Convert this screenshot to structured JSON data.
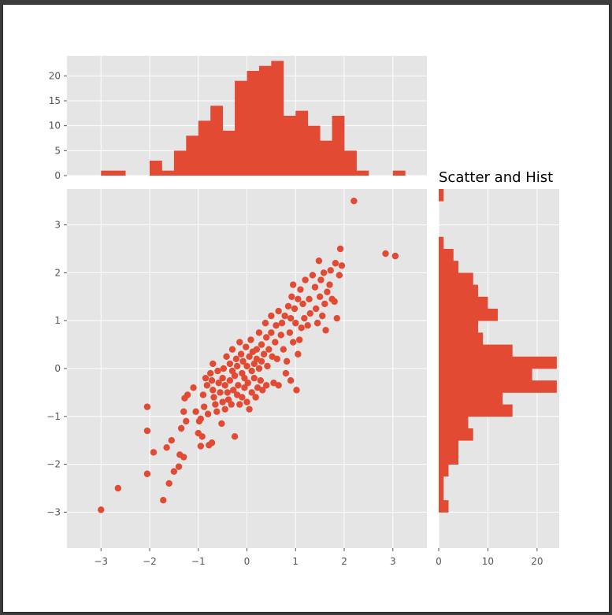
{
  "colors": {
    "marker": "#E24A33",
    "axes_bg": "#E5E5E5",
    "grid": "#FFFFFF",
    "tick_text": "#555555"
  },
  "chart_data": [
    {
      "type": "scatter",
      "name": "main-scatter",
      "xlim": [
        -3.7,
        3.7
      ],
      "ylim": [
        -3.75,
        3.75
      ],
      "xticks": [
        -3,
        -2,
        -1,
        0,
        1,
        2,
        3
      ],
      "yticks": [
        -3,
        -2,
        -1,
        0,
        1,
        2,
        3
      ],
      "grid": true,
      "points": [
        [
          -3.0,
          -2.95
        ],
        [
          -2.65,
          -2.5
        ],
        [
          -2.05,
          -0.8
        ],
        [
          -2.05,
          -1.3
        ],
        [
          -2.05,
          -2.2
        ],
        [
          -1.92,
          -1.75
        ],
        [
          -1.72,
          -2.75
        ],
        [
          -1.65,
          -1.65
        ],
        [
          -1.6,
          -2.4
        ],
        [
          -1.55,
          -1.5
        ],
        [
          -1.5,
          -2.15
        ],
        [
          -1.4,
          -2.05
        ],
        [
          -1.38,
          -1.8
        ],
        [
          -1.35,
          -1.25
        ],
        [
          -1.3,
          -0.9
        ],
        [
          -1.3,
          -1.85
        ],
        [
          -1.28,
          -0.62
        ],
        [
          -1.25,
          -1.1
        ],
        [
          -1.22,
          -0.55
        ],
        [
          -1.1,
          -0.4
        ],
        [
          -1.05,
          -0.9
        ],
        [
          -1.0,
          -1.35
        ],
        [
          -0.98,
          -1.1
        ],
        [
          -0.95,
          -1.62
        ],
        [
          -0.95,
          -1.05
        ],
        [
          -0.92,
          -1.42
        ],
        [
          -0.9,
          -0.55
        ],
        [
          -0.88,
          -0.8
        ],
        [
          -0.85,
          -0.2
        ],
        [
          -0.82,
          -0.35
        ],
        [
          -0.8,
          -0.95
        ],
        [
          -0.78,
          -1.6
        ],
        [
          -0.75,
          -0.1
        ],
        [
          -0.72,
          -0.25
        ],
        [
          -0.7,
          -0.45
        ],
        [
          -0.72,
          -1.55
        ],
        [
          -0.7,
          0.1
        ],
        [
          -0.68,
          -0.6
        ],
        [
          -0.65,
          -0.75
        ],
        [
          -0.62,
          -0.9
        ],
        [
          -0.6,
          -0.05
        ],
        [
          -0.58,
          -0.3
        ],
        [
          -0.55,
          -0.5
        ],
        [
          -0.52,
          -1.15
        ],
        [
          -0.5,
          -0.2
        ],
        [
          -0.5,
          -0.7
        ],
        [
          -0.48,
          0.0
        ],
        [
          -0.45,
          -0.35
        ],
        [
          -0.45,
          -0.85
        ],
        [
          -0.42,
          0.25
        ],
        [
          -0.4,
          -0.5
        ],
        [
          -0.38,
          -0.65
        ],
        [
          -0.35,
          0.1
        ],
        [
          -0.35,
          -0.25
        ],
        [
          -0.32,
          -0.75
        ],
        [
          -0.3,
          0.4
        ],
        [
          -0.3,
          -0.05
        ],
        [
          -0.28,
          -0.45
        ],
        [
          -0.25,
          -1.42
        ],
        [
          -0.25,
          -0.15
        ],
        [
          -0.22,
          0.2
        ],
        [
          -0.2,
          -0.55
        ],
        [
          -0.2,
          0.05
        ],
        [
          -0.18,
          -0.35
        ],
        [
          -0.15,
          0.55
        ],
        [
          -0.15,
          -0.75
        ],
        [
          -0.12,
          0.3
        ],
        [
          -0.1,
          -0.1
        ],
        [
          -0.1,
          -0.6
        ],
        [
          -0.08,
          0.15
        ],
        [
          -0.05,
          -0.4
        ],
        [
          -0.05,
          -0.2
        ],
        [
          -0.02,
          0.45
        ],
        [
          0.0,
          0.05
        ],
        [
          0.0,
          -0.7
        ],
        [
          0.02,
          -0.3
        ],
        [
          0.05,
          0.25
        ],
        [
          0.05,
          -0.85
        ],
        [
          0.08,
          0.6
        ],
        [
          0.1,
          -0.05
        ],
        [
          0.1,
          -0.5
        ],
        [
          0.12,
          0.35
        ],
        [
          0.15,
          0.1
        ],
        [
          0.15,
          -0.2
        ],
        [
          0.18,
          -0.6
        ],
        [
          0.2,
          0.4
        ],
        [
          0.2,
          0.2
        ],
        [
          0.22,
          -0.4
        ],
        [
          0.25,
          0.75
        ],
        [
          0.25,
          0.0
        ],
        [
          0.28,
          -0.25
        ],
        [
          0.3,
          0.5
        ],
        [
          0.3,
          0.15
        ],
        [
          0.32,
          -0.45
        ],
        [
          0.35,
          0.3
        ],
        [
          0.38,
          0.95
        ],
        [
          0.4,
          0.65
        ],
        [
          0.4,
          -0.35
        ],
        [
          0.42,
          0.05
        ],
        [
          0.45,
          0.4
        ],
        [
          0.5,
          1.1
        ],
        [
          0.5,
          0.75
        ],
        [
          0.52,
          0.25
        ],
        [
          0.55,
          -0.3
        ],
        [
          0.58,
          0.55
        ],
        [
          0.6,
          0.9
        ],
        [
          0.62,
          0.2
        ],
        [
          0.65,
          1.2
        ],
        [
          0.65,
          -0.35
        ],
        [
          0.7,
          0.7
        ],
        [
          0.72,
          0.95
        ],
        [
          0.75,
          0.4
        ],
        [
          0.78,
          1.1
        ],
        [
          0.8,
          -0.1
        ],
        [
          0.82,
          0.15
        ],
        [
          0.85,
          1.3
        ],
        [
          0.88,
          0.75
        ],
        [
          0.9,
          1.05
        ],
        [
          0.9,
          -0.25
        ],
        [
          0.92,
          1.5
        ],
        [
          0.95,
          0.55
        ],
        [
          0.95,
          1.75
        ],
        [
          0.98,
          1.25
        ],
        [
          1.0,
          0.95
        ],
        [
          1.02,
          -0.45
        ],
        [
          1.05,
          1.45
        ],
        [
          1.05,
          0.3
        ],
        [
          1.08,
          0.6
        ],
        [
          1.1,
          1.65
        ],
        [
          1.12,
          0.85
        ],
        [
          1.15,
          1.35
        ],
        [
          1.18,
          1.05
        ],
        [
          1.2,
          1.85
        ],
        [
          1.25,
          0.9
        ],
        [
          1.28,
          1.45
        ],
        [
          1.3,
          1.15
        ],
        [
          1.35,
          1.95
        ],
        [
          1.4,
          1.7
        ],
        [
          1.42,
          1.25
        ],
        [
          1.45,
          0.95
        ],
        [
          1.48,
          2.25
        ],
        [
          1.5,
          1.5
        ],
        [
          1.52,
          1.85
        ],
        [
          1.55,
          1.1
        ],
        [
          1.58,
          2.0
        ],
        [
          1.6,
          1.35
        ],
        [
          1.62,
          0.8
        ],
        [
          1.65,
          1.6
        ],
        [
          1.7,
          1.75
        ],
        [
          1.72,
          2.05
        ],
        [
          1.75,
          1.45
        ],
        [
          1.8,
          1.4
        ],
        [
          1.82,
          2.2
        ],
        [
          1.85,
          1.05
        ],
        [
          1.9,
          1.95
        ],
        [
          1.92,
          2.5
        ],
        [
          1.95,
          2.15
        ],
        [
          2.2,
          3.5
        ],
        [
          2.85,
          2.4
        ],
        [
          3.05,
          2.35
        ]
      ]
    },
    {
      "type": "bar",
      "name": "top-histogram-x",
      "orientation": "vertical",
      "xlim": [
        -3.7,
        3.7
      ],
      "ylim": [
        0,
        24
      ],
      "yticks": [
        0,
        5,
        10,
        15,
        20
      ],
      "grid": true,
      "bin_edges": [
        -3.0,
        -2.75,
        -2.5,
        -2.25,
        -2.0,
        -1.75,
        -1.5,
        -1.25,
        -1.0,
        -0.75,
        -0.5,
        -0.25,
        0.0,
        0.25,
        0.5,
        0.75,
        1.0,
        1.25,
        1.5,
        1.75,
        2.0,
        2.25,
        2.5,
        2.75,
        3.0,
        3.25
      ],
      "values": [
        1,
        1,
        0,
        0,
        3,
        1,
        5,
        8,
        11,
        14,
        9,
        19,
        21,
        22,
        23,
        12,
        13,
        10,
        7,
        12,
        5,
        1,
        0,
        0,
        1
      ]
    },
    {
      "type": "bar",
      "name": "right-histogram-y",
      "orientation": "horizontal",
      "title": "Scatter and Hist",
      "ylim": [
        -3.75,
        3.75
      ],
      "xlim": [
        0,
        24.5
      ],
      "xticks": [
        0,
        10,
        20
      ],
      "grid": true,
      "bin_edges": [
        -3.0,
        -2.75,
        -2.5,
        -2.25,
        -2.0,
        -1.75,
        -1.5,
        -1.25,
        -1.0,
        -0.75,
        -0.5,
        -0.25,
        0.0,
        0.25,
        0.5,
        0.75,
        1.0,
        1.25,
        1.5,
        1.75,
        2.0,
        2.25,
        2.5,
        2.75,
        3.0,
        3.25,
        3.5,
        3.75
      ],
      "values": [
        2,
        1,
        1,
        2,
        4,
        4,
        7,
        6,
        15,
        13,
        24,
        19,
        24,
        15,
        9,
        8,
        12,
        10,
        8,
        7,
        4,
        3,
        1,
        0,
        0,
        0,
        1
      ]
    }
  ]
}
